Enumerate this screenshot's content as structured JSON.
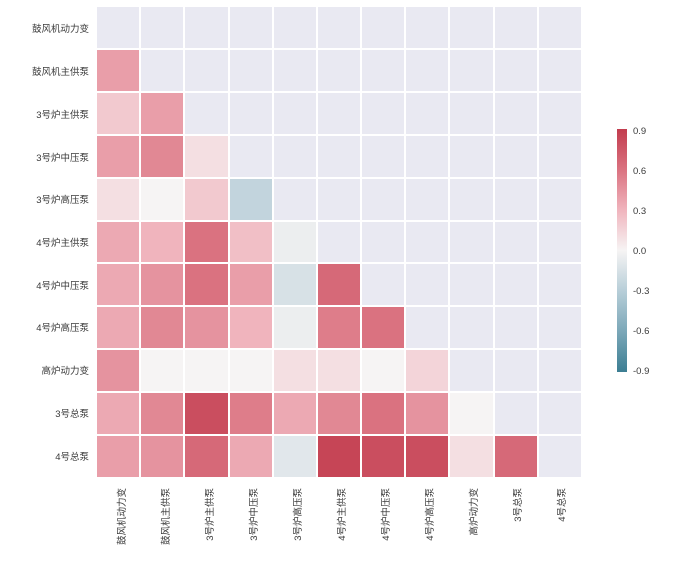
{
  "chart_data": {
    "type": "heatmap",
    "title": "",
    "description": "Lower-triangle correlation heatmap (diagonal and upper triangle masked)",
    "labels": [
      "鼓风机动力变",
      "鼓风机主供泵",
      "3号炉主供泵",
      "3号炉中压泵",
      "3号炉高压泵",
      "4号炉主供泵",
      "4号炉中压泵",
      "4号炉高压泵",
      "高炉动力变",
      "3号总泵",
      "4号总泵"
    ],
    "x_labels": [
      "鼓风机动力变",
      "鼓风机主供泵",
      "3号炉主供泵",
      "3号炉中压泵",
      "3号炉高压泵",
      "4号炉主供泵",
      "4号炉中压泵",
      "4号炉高压泵",
      "高炉动力变",
      "3号总泵",
      "4号总泵"
    ],
    "matrix": [
      [
        null,
        null,
        null,
        null,
        null,
        null,
        null,
        null,
        null,
        null,
        null
      ],
      [
        0.4,
        null,
        null,
        null,
        null,
        null,
        null,
        null,
        null,
        null,
        null
      ],
      [
        0.2,
        0.4,
        null,
        null,
        null,
        null,
        null,
        null,
        null,
        null,
        null
      ],
      [
        0.4,
        0.5,
        0.1,
        null,
        null,
        null,
        null,
        null,
        null,
        null,
        null
      ],
      [
        0.1,
        0.0,
        0.2,
        -0.25,
        null,
        null,
        null,
        null,
        null,
        null,
        null
      ],
      [
        0.35,
        0.3,
        0.6,
        0.25,
        -0.05,
        null,
        null,
        null,
        null,
        null,
        null
      ],
      [
        0.35,
        0.45,
        0.6,
        0.4,
        -0.15,
        0.65,
        null,
        null,
        null,
        null,
        null
      ],
      [
        0.35,
        0.5,
        0.45,
        0.3,
        -0.05,
        0.55,
        0.6,
        null,
        null,
        null,
        null
      ],
      [
        0.45,
        0.0,
        0.0,
        0.0,
        0.1,
        0.1,
        0.0,
        0.15,
        null,
        null,
        null
      ],
      [
        0.35,
        0.5,
        0.8,
        0.55,
        0.35,
        0.5,
        0.6,
        0.45,
        0.0,
        null,
        null
      ],
      [
        0.4,
        0.45,
        0.65,
        0.35,
        -0.1,
        0.85,
        0.8,
        0.8,
        0.1,
        0.65,
        null
      ]
    ],
    "mask": "upper-triangle-including-diagonal",
    "colorbar": {
      "ticks": [
        "0.9",
        "0.6",
        "0.3",
        "0.0",
        "-0.3",
        "-0.6",
        "-0.9"
      ],
      "tick_values": [
        0.9,
        0.6,
        0.3,
        0.0,
        -0.3,
        -0.6,
        -0.9
      ],
      "vmin": -0.9,
      "vmax": 0.9,
      "position": "right"
    },
    "colormap_anchors": [
      {
        "v": -0.9,
        "c": "#3c7e93"
      },
      {
        "v": -0.6,
        "c": "#7ba7b8"
      },
      {
        "v": -0.3,
        "c": "#b7ced8"
      },
      {
        "v": 0.0,
        "c": "#f6f4f4"
      },
      {
        "v": 0.3,
        "c": "#f0b4bd"
      },
      {
        "v": 0.6,
        "c": "#da7280"
      },
      {
        "v": 0.9,
        "c": "#c23c4e"
      }
    ],
    "colors": {
      "masked_cell": "#e9e9f2",
      "gridline": "#ffffff",
      "figure_background": "#ffffff",
      "tick_text": "#3a3a3a"
    },
    "grid": true,
    "legend": "colorbar-right"
  }
}
